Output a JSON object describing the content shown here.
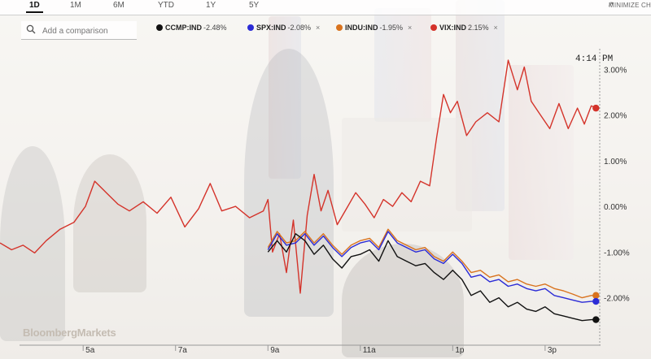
{
  "timeframes": [
    {
      "label": "1D",
      "active": true
    },
    {
      "label": "1M",
      "active": false
    },
    {
      "label": "6M",
      "active": false
    },
    {
      "label": "YTD",
      "active": false
    },
    {
      "label": "1Y",
      "active": false
    },
    {
      "label": "5Y",
      "active": false
    }
  ],
  "minimize_label": "MINIMIZE CH",
  "search": {
    "placeholder": "Add a comparison"
  },
  "legend": [
    {
      "symbol": "CCMP:IND",
      "change": "-2.48%",
      "color": "#111111",
      "removable": false
    },
    {
      "symbol": "SPX:IND",
      "change": "-2.08%",
      "color": "#2b2bd6",
      "removable": true
    },
    {
      "symbol": "INDU:IND",
      "change": "-1.95%",
      "color": "#d9731e",
      "removable": true
    },
    {
      "symbol": "VIX:IND",
      "change": "2.15%",
      "color": "#d4332a",
      "removable": true
    }
  ],
  "time_label": "4:14 PM",
  "brand": "BloombergMarkets",
  "chart_data": {
    "type": "line",
    "x_unit": "time of day",
    "xticks": [
      "5a",
      "7a",
      "9a",
      "11a",
      "1p",
      "3p"
    ],
    "xtick_hours": [
      5,
      7,
      9,
      11,
      13,
      15
    ],
    "xlim": [
      3.2,
      16.2
    ],
    "y_unit": "percent change",
    "yticks": [
      "3.00%",
      "2.00%",
      "1.00%",
      "0.00%",
      "-1.00%",
      "-2.00%"
    ],
    "ytick_values": [
      3,
      2,
      1,
      0,
      -1,
      -2
    ],
    "ylim": [
      -2.95,
      3.45
    ],
    "grid": false,
    "series": [
      {
        "name": "VIX:IND",
        "color": "#d4332a",
        "end": 2.15,
        "x": [
          3.2,
          3.45,
          3.7,
          3.95,
          4.2,
          4.5,
          4.8,
          5.05,
          5.25,
          5.5,
          5.75,
          6.0,
          6.3,
          6.6,
          6.9,
          7.2,
          7.5,
          7.75,
          8.0,
          8.3,
          8.6,
          8.9,
          9.0,
          9.1,
          9.25,
          9.4,
          9.55,
          9.7,
          9.85,
          10.0,
          10.15,
          10.3,
          10.5,
          10.7,
          10.9,
          11.1,
          11.3,
          11.5,
          11.7,
          11.9,
          12.1,
          12.3,
          12.5,
          12.65,
          12.8,
          12.95,
          13.1,
          13.3,
          13.5,
          13.75,
          14.0,
          14.2,
          14.4,
          14.55,
          14.7,
          14.9,
          15.1,
          15.3,
          15.5,
          15.7,
          15.85,
          16.0,
          16.1
        ],
        "y": [
          -0.8,
          -0.95,
          -0.85,
          -1.02,
          -0.75,
          -0.5,
          -0.35,
          0.0,
          0.55,
          0.3,
          0.05,
          -0.1,
          0.1,
          -0.15,
          0.2,
          -0.45,
          -0.05,
          0.5,
          -0.1,
          0.0,
          -0.25,
          -0.1,
          0.15,
          -1.0,
          -0.6,
          -1.45,
          -0.3,
          -1.9,
          -0.2,
          0.7,
          -0.1,
          0.35,
          -0.4,
          -0.05,
          0.3,
          0.05,
          -0.25,
          0.15,
          0.0,
          0.3,
          0.1,
          0.55,
          0.45,
          1.5,
          2.45,
          2.05,
          2.3,
          1.55,
          1.85,
          2.05,
          1.85,
          3.2,
          2.55,
          3.05,
          2.3,
          2.0,
          1.7,
          2.25,
          1.7,
          2.15,
          1.8,
          2.2,
          2.15
        ]
      },
      {
        "name": "INDU:IND",
        "color": "#d9731e",
        "end": -1.95,
        "x": [
          9.0,
          9.2,
          9.4,
          9.6,
          9.8,
          10.0,
          10.2,
          10.4,
          10.6,
          10.8,
          11.0,
          11.2,
          11.4,
          11.6,
          11.8,
          12.0,
          12.2,
          12.4,
          12.6,
          12.8,
          13.0,
          13.2,
          13.4,
          13.6,
          13.8,
          14.0,
          14.2,
          14.4,
          14.6,
          14.8,
          15.0,
          15.2,
          15.4,
          15.6,
          15.8,
          16.0,
          16.1
        ],
        "y": [
          -0.9,
          -0.55,
          -0.8,
          -0.75,
          -0.55,
          -0.8,
          -0.6,
          -0.85,
          -1.05,
          -0.85,
          -0.75,
          -0.7,
          -0.9,
          -0.5,
          -0.75,
          -0.85,
          -0.95,
          -0.9,
          -1.1,
          -1.2,
          -1.0,
          -1.2,
          -1.45,
          -1.4,
          -1.55,
          -1.5,
          -1.65,
          -1.6,
          -1.7,
          -1.75,
          -1.7,
          -1.8,
          -1.85,
          -1.92,
          -2.0,
          -1.95,
          -1.95
        ]
      },
      {
        "name": "SPX:IND",
        "color": "#2b2bd6",
        "end": -2.08,
        "x": [
          9.0,
          9.2,
          9.4,
          9.6,
          9.8,
          10.0,
          10.2,
          10.4,
          10.6,
          10.8,
          11.0,
          11.2,
          11.4,
          11.6,
          11.8,
          12.0,
          12.2,
          12.4,
          12.6,
          12.8,
          13.0,
          13.2,
          13.4,
          13.6,
          13.8,
          14.0,
          14.2,
          14.4,
          14.6,
          14.8,
          15.0,
          15.2,
          15.4,
          15.6,
          15.8,
          16.0,
          16.1
        ],
        "y": [
          -0.95,
          -0.6,
          -0.85,
          -0.8,
          -0.6,
          -0.85,
          -0.65,
          -0.9,
          -1.1,
          -0.9,
          -0.8,
          -0.75,
          -0.95,
          -0.55,
          -0.8,
          -0.9,
          -1.0,
          -0.95,
          -1.15,
          -1.25,
          -1.05,
          -1.25,
          -1.55,
          -1.5,
          -1.65,
          -1.6,
          -1.75,
          -1.7,
          -1.8,
          -1.85,
          -1.8,
          -1.95,
          -2.0,
          -2.05,
          -2.1,
          -2.08,
          -2.08
        ]
      },
      {
        "name": "CCMP:IND",
        "color": "#111111",
        "end": -2.48,
        "x": [
          9.0,
          9.2,
          9.4,
          9.6,
          9.8,
          10.0,
          10.2,
          10.4,
          10.6,
          10.8,
          11.0,
          11.2,
          11.4,
          11.6,
          11.8,
          12.0,
          12.2,
          12.4,
          12.6,
          12.8,
          13.0,
          13.2,
          13.4,
          13.6,
          13.8,
          14.0,
          14.2,
          14.4,
          14.6,
          14.8,
          15.0,
          15.2,
          15.4,
          15.6,
          15.8,
          16.0,
          16.1
        ],
        "y": [
          -1.0,
          -0.75,
          -1.0,
          -0.6,
          -0.75,
          -1.05,
          -0.85,
          -1.15,
          -1.35,
          -1.1,
          -1.05,
          -0.95,
          -1.2,
          -0.75,
          -1.1,
          -1.2,
          -1.3,
          -1.25,
          -1.45,
          -1.6,
          -1.4,
          -1.6,
          -1.95,
          -1.85,
          -2.1,
          -2.0,
          -2.2,
          -2.1,
          -2.25,
          -2.3,
          -2.2,
          -2.35,
          -2.4,
          -2.45,
          -2.5,
          -2.48,
          -2.48
        ]
      }
    ]
  }
}
